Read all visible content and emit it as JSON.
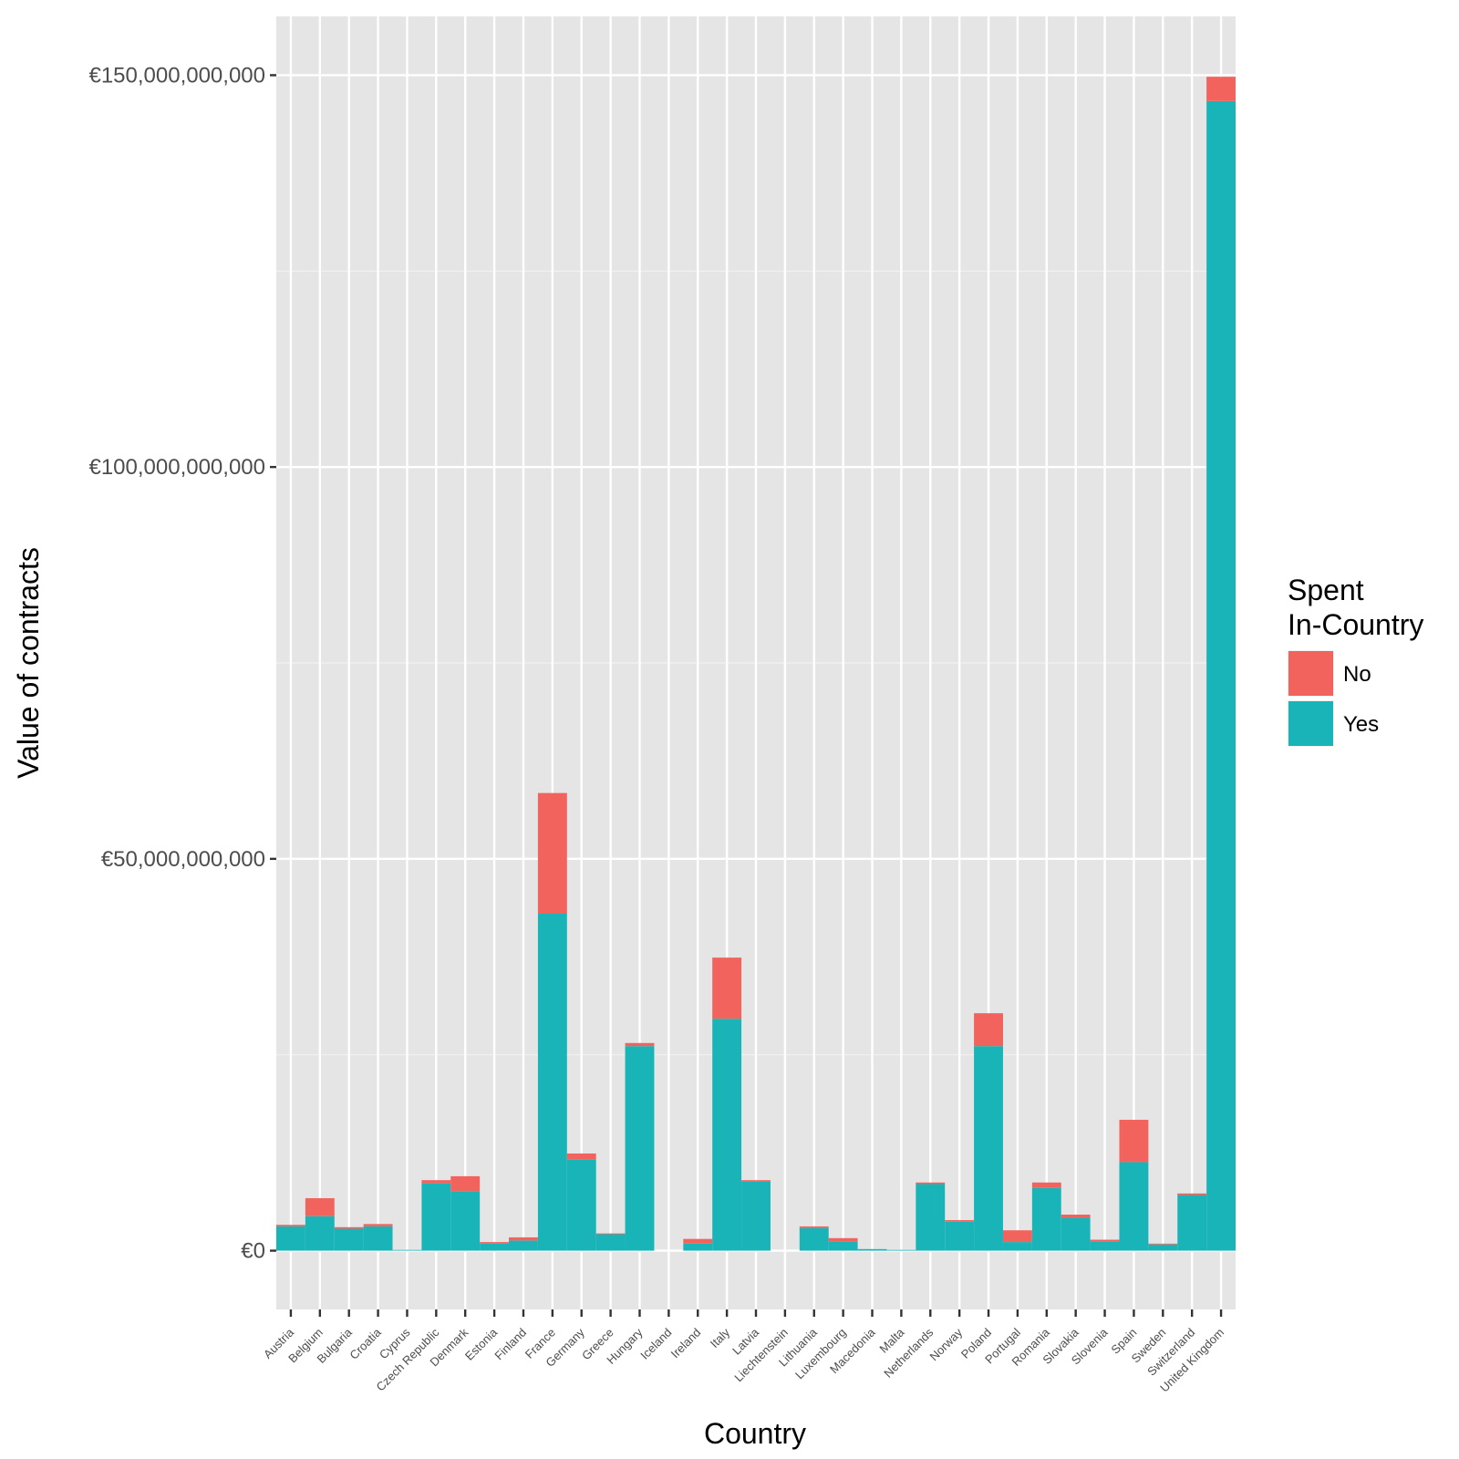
{
  "chart_data": {
    "type": "bar",
    "stacked": true,
    "title": "",
    "xlabel": "Country",
    "ylabel": "Value of contracts",
    "ylim": [
      -7500000000,
      157500000000
    ],
    "yticks": [
      0,
      50000000000,
      100000000000,
      150000000000
    ],
    "ytick_labels": [
      "€0",
      "€50,000,000,000",
      "€100,000,000,000",
      "€150,000,000,000"
    ],
    "categories": [
      "Austria",
      "Belgium",
      "Bulgaria",
      "Croatia",
      "Cyprus",
      "Czech Republic",
      "Denmark",
      "Estonia",
      "Finland",
      "France",
      "Germany",
      "Greece",
      "Hungary",
      "Iceland",
      "Ireland",
      "Italy",
      "Latvia",
      "Liechtenstein",
      "Lithuania",
      "Luxembourg",
      "Macedonia",
      "Malta",
      "Netherlands",
      "Norway",
      "Poland",
      "Portugal",
      "Romania",
      "Slovakia",
      "Slovenia",
      "Spain",
      "Sweden",
      "Switzerland",
      "United Kingdom"
    ],
    "series": [
      {
        "name": "Yes",
        "color": "#19B4B8",
        "values": [
          3100000000,
          4400000000,
          2800000000,
          3100000000,
          100000000,
          8600000000,
          7600000000,
          900000000,
          1300000000,
          43000000000,
          11600000000,
          2100000000,
          26100000000,
          0,
          900000000,
          29600000000,
          8800000000,
          0,
          2900000000,
          1200000000,
          200000000,
          100000000,
          8500000000,
          3700000000,
          26100000000,
          1100000000,
          8000000000,
          4200000000,
          1200000000,
          11300000000,
          800000000,
          7100000000,
          146700000000
        ]
      },
      {
        "name": "No",
        "color": "#F2635E",
        "values": [
          200000000,
          2300000000,
          200000000,
          300000000,
          0,
          400000000,
          1900000000,
          200000000,
          400000000,
          15400000000,
          800000000,
          100000000,
          400000000,
          0,
          600000000,
          7800000000,
          200000000,
          0,
          200000000,
          400000000,
          0,
          0,
          200000000,
          200000000,
          4200000000,
          1500000000,
          700000000,
          400000000,
          200000000,
          5400000000,
          100000000,
          200000000,
          3100000000
        ]
      }
    ],
    "legend": {
      "title_line1": "Spent",
      "title_line2": "In-Country",
      "position": "right"
    },
    "grid": true,
    "background": "#E5E5E5"
  }
}
